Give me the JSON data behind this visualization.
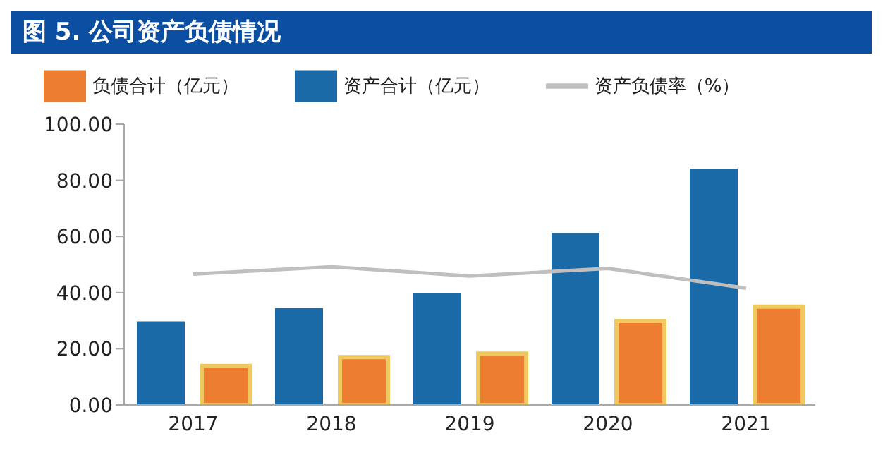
{
  "chart_data": {
    "type": "bar",
    "title": "图 5. 公司资产负债情况",
    "categories": [
      "2017",
      "2018",
      "2019",
      "2020",
      "2021"
    ],
    "series": [
      {
        "name": "资产合计（亿元）",
        "color": "#1a6aa8",
        "values": [
          29.8,
          34.5,
          39.7,
          61.2,
          84.2
        ]
      },
      {
        "name": "负债合计（亿元）",
        "color": "#ed7d31",
        "values": [
          13.9,
          17.0,
          18.3,
          29.9,
          35.0
        ]
      },
      {
        "name": "资产负债率（%）",
        "type": "line",
        "color": "#bfbfbf",
        "marker": "none",
        "values": [
          46.6,
          49.2,
          45.9,
          48.6,
          41.6
        ]
      }
    ],
    "ylim": [
      0,
      100
    ],
    "yticks": [
      {
        "value": 0,
        "label": "0.00"
      },
      {
        "value": 20,
        "label": "20.00"
      },
      {
        "value": 40,
        "label": "40.00"
      },
      {
        "value": 60,
        "label": "60.00"
      },
      {
        "value": 80,
        "label": "80.00"
      },
      {
        "value": 100,
        "label": "100.00"
      }
    ],
    "grid": false,
    "legend": "top"
  }
}
